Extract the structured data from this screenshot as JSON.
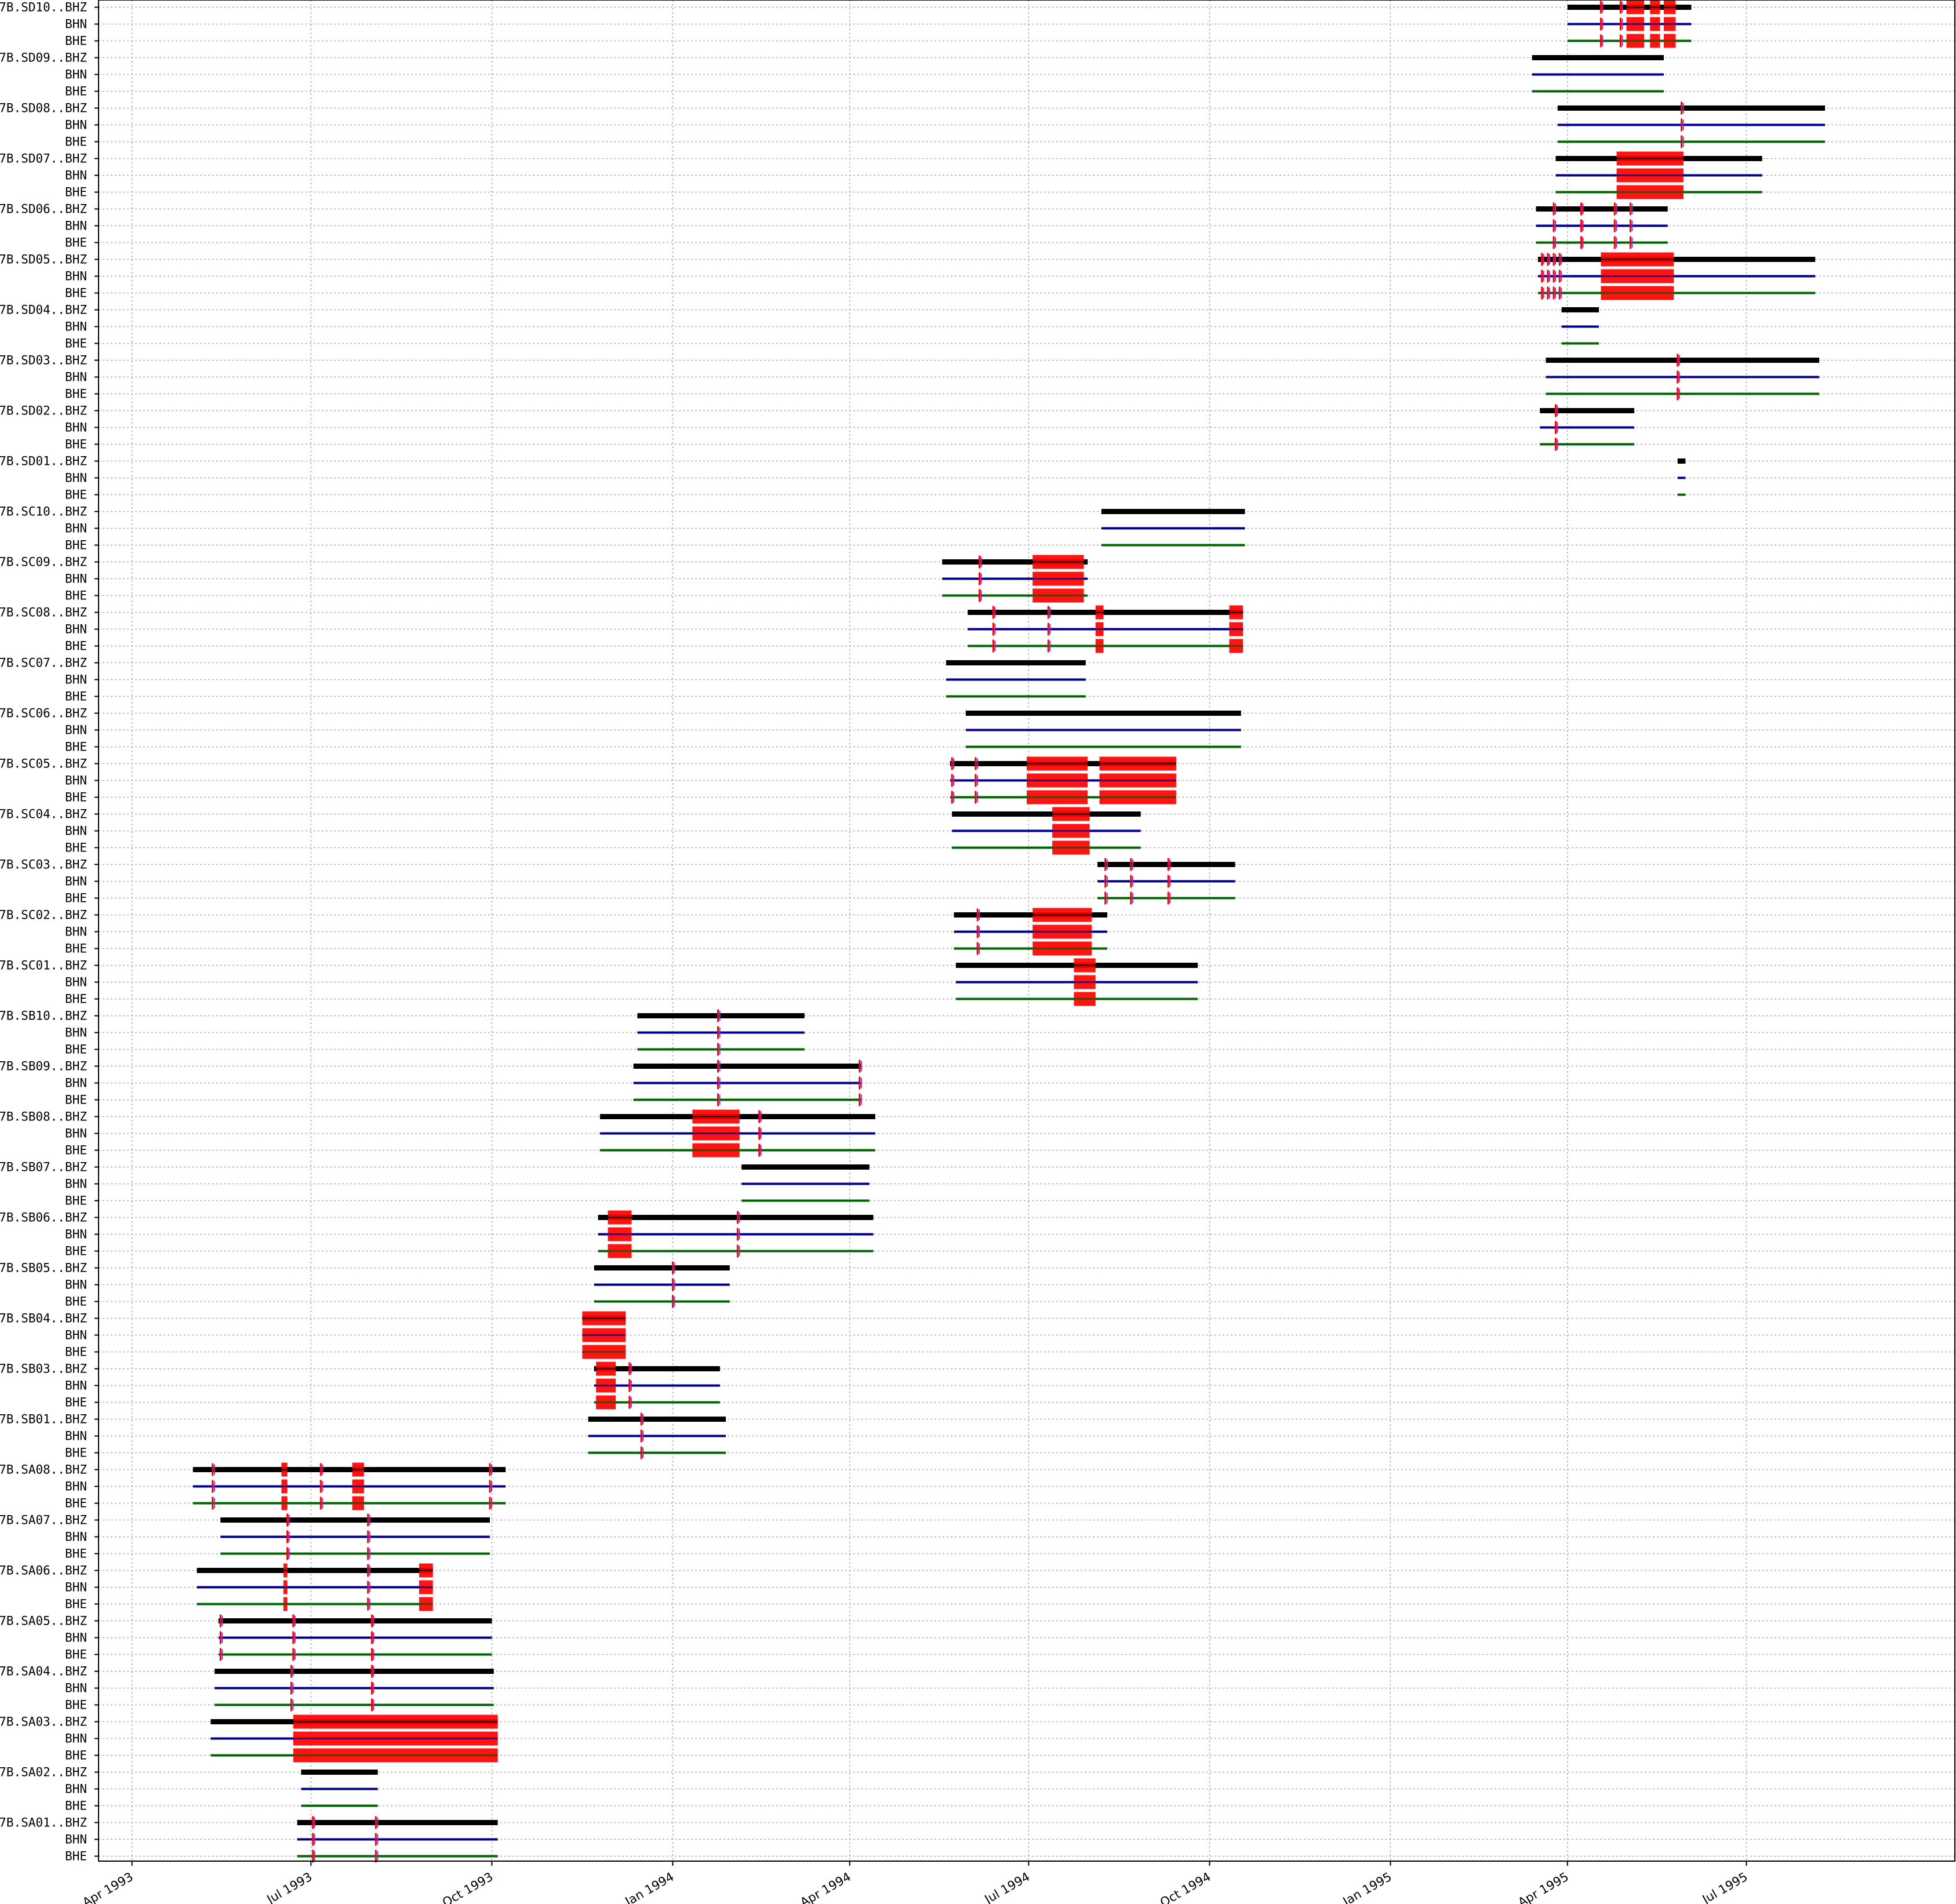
{
  "chart_data": {
    "type": "gantt",
    "title": "",
    "xlabel": "",
    "ylabel": "",
    "grid": true,
    "x_axis": {
      "type": "date",
      "range": [
        "1993-03-15",
        "1995-10-15"
      ],
      "ticks": [
        {
          "date": "1993-04-01",
          "label": "Apr 1993"
        },
        {
          "date": "1993-07-01",
          "label": "Jul 1993"
        },
        {
          "date": "1993-10-01",
          "label": "Oct 1993"
        },
        {
          "date": "1994-01-01",
          "label": "Jan 1994"
        },
        {
          "date": "1994-04-01",
          "label": "Apr 1994"
        },
        {
          "date": "1994-07-01",
          "label": "Jul 1994"
        },
        {
          "date": "1994-10-01",
          "label": "Oct 1994"
        },
        {
          "date": "1995-01-01",
          "label": "Jan 1995"
        },
        {
          "date": "1995-04-01",
          "label": "Apr 1995"
        },
        {
          "date": "1995-07-01",
          "label": "Jul 1995"
        }
      ]
    },
    "channel_colors": {
      "BHZ": "#000000",
      "BHN": "#00008b",
      "BHE": "#006400"
    },
    "gap_color": "#ff0000",
    "overlap_color": "#8a2be2",
    "stations": [
      {
        "id": "7B.SD10",
        "start": "1995-04-01",
        "end": "1995-06-03",
        "gaps": [
          [
            "1995-05-01",
            "1995-05-10"
          ],
          [
            "1995-05-13",
            "1995-05-18"
          ],
          [
            "1995-05-20",
            "1995-05-26"
          ]
        ],
        "ticks": [
          "1995-04-18",
          "1995-04-28"
        ]
      },
      {
        "id": "7B.SD09",
        "start": "1995-03-14",
        "end": "1995-05-20",
        "gaps": [],
        "ticks": []
      },
      {
        "id": "7B.SD08",
        "start": "1995-03-27",
        "end": "1995-08-10",
        "gaps": [],
        "ticks": [
          "1995-05-29"
        ]
      },
      {
        "id": "7B.SD07",
        "start": "1995-03-26",
        "end": "1995-07-09",
        "gaps": [
          [
            "1995-04-26",
            "1995-05-30"
          ]
        ],
        "ticks": []
      },
      {
        "id": "7B.SD06",
        "start": "1995-03-16",
        "end": "1995-05-22",
        "gaps": [],
        "ticks": [
          "1995-03-25",
          "1995-04-08",
          "1995-04-25",
          "1995-05-03"
        ]
      },
      {
        "id": "7B.SD05",
        "start": "1995-03-17",
        "end": "1995-08-05",
        "gaps": [
          [
            "1995-04-18",
            "1995-05-25"
          ]
        ],
        "ticks": [
          "1995-03-19",
          "1995-03-22",
          "1995-03-25",
          "1995-03-28"
        ]
      },
      {
        "id": "7B.SD04",
        "start": "1995-03-29",
        "end": "1995-04-17",
        "gaps": [],
        "ticks": []
      },
      {
        "id": "7B.SD03",
        "start": "1995-03-21",
        "end": "1995-08-07",
        "gaps": [],
        "ticks": [
          "1995-05-27"
        ]
      },
      {
        "id": "7B.SD02",
        "start": "1995-03-18",
        "end": "1995-05-05",
        "gaps": [],
        "ticks": [
          "1995-03-26"
        ]
      },
      {
        "id": "7B.SD01",
        "start": "1995-05-27",
        "end": "1995-05-31",
        "gaps": [],
        "ticks": []
      },
      {
        "id": "7B.SC10",
        "start": "1994-08-07",
        "end": "1994-10-19",
        "gaps": [],
        "ticks": []
      },
      {
        "id": "7B.SC09",
        "start": "1994-05-18",
        "end": "1994-07-31",
        "gaps": [
          [
            "1994-07-03",
            "1994-07-29"
          ]
        ],
        "ticks": [
          "1994-06-06"
        ]
      },
      {
        "id": "7B.SC08",
        "start": "1994-05-31",
        "end": "1994-10-18",
        "gaps": [
          [
            "1994-08-04",
            "1994-08-08"
          ],
          [
            "1994-10-11",
            "1994-10-18"
          ]
        ],
        "ticks": [
          "1994-06-13",
          "1994-07-11"
        ]
      },
      {
        "id": "7B.SC07",
        "start": "1994-05-20",
        "end": "1994-07-30",
        "gaps": [],
        "ticks": []
      },
      {
        "id": "7B.SC06",
        "start": "1994-05-30",
        "end": "1994-10-17",
        "gaps": [],
        "ticks": []
      },
      {
        "id": "7B.SC05",
        "start": "1994-05-22",
        "end": "1994-09-14",
        "gaps": [
          [
            "1994-06-30",
            "1994-07-31"
          ],
          [
            "1994-08-06",
            "1994-09-14"
          ]
        ],
        "ticks": [
          "1994-05-23",
          "1994-06-04"
        ]
      },
      {
        "id": "7B.SC04",
        "start": "1994-05-23",
        "end": "1994-08-27",
        "gaps": [
          [
            "1994-07-13",
            "1994-08-01"
          ]
        ],
        "ticks": []
      },
      {
        "id": "7B.SC03",
        "start": "1994-08-05",
        "end": "1994-10-14",
        "gaps": [],
        "ticks": [
          "1994-08-09",
          "1994-08-22",
          "1994-09-10"
        ]
      },
      {
        "id": "7B.SC02",
        "start": "1994-05-24",
        "end": "1994-08-10",
        "gaps": [
          [
            "1994-07-03",
            "1994-08-02"
          ]
        ],
        "ticks": [
          "1994-06-05"
        ]
      },
      {
        "id": "7B.SC01",
        "start": "1994-05-25",
        "end": "1994-09-25",
        "gaps": [
          [
            "1994-07-24",
            "1994-08-04"
          ]
        ],
        "ticks": []
      },
      {
        "id": "7B.SB10",
        "start": "1993-12-14",
        "end": "1994-03-09",
        "gaps": [],
        "ticks": [
          "1994-01-24"
        ]
      },
      {
        "id": "7B.SB09",
        "start": "1993-12-12",
        "end": "1994-04-07",
        "gaps": [],
        "ticks": [
          "1994-01-24",
          "1994-04-06"
        ]
      },
      {
        "id": "7B.SB08",
        "start": "1993-11-25",
        "end": "1994-04-14",
        "gaps": [
          [
            "1994-01-11",
            "1994-02-04"
          ]
        ],
        "ticks": [
          "1994-02-14"
        ]
      },
      {
        "id": "7B.SB07",
        "start": "1994-02-05",
        "end": "1994-04-11",
        "gaps": [],
        "ticks": []
      },
      {
        "id": "7B.SB06",
        "start": "1993-11-24",
        "end": "1994-04-13",
        "gaps": [
          [
            "1993-11-29",
            "1993-12-11"
          ]
        ],
        "ticks": [
          "1994-02-03"
        ]
      },
      {
        "id": "7B.SB05",
        "start": "1993-11-22",
        "end": "1994-01-30",
        "gaps": [],
        "ticks": [
          "1994-01-01"
        ]
      },
      {
        "id": "7B.SB04",
        "start": "1993-11-16",
        "end": "1993-12-08",
        "gaps": [
          [
            "1993-11-16",
            "1993-12-08"
          ]
        ],
        "ticks": []
      },
      {
        "id": "7B.SB03",
        "start": "1993-11-22",
        "end": "1994-01-25",
        "gaps": [
          [
            "1993-11-23",
            "1993-12-03"
          ]
        ],
        "ticks": [
          "1993-12-10"
        ]
      },
      {
        "id": "7B.SB01",
        "start": "1993-11-19",
        "end": "1994-01-28",
        "gaps": [],
        "ticks": [
          "1993-12-16"
        ]
      },
      {
        "id": "7B.SA08",
        "start": "1993-05-02",
        "end": "1993-10-08",
        "gaps": [
          [
            "1993-06-16",
            "1993-06-19"
          ],
          [
            "1993-07-22",
            "1993-07-28"
          ]
        ],
        "ticks": [
          "1993-05-12",
          "1993-07-06",
          "1993-09-30"
        ]
      },
      {
        "id": "7B.SA07",
        "start": "1993-05-16",
        "end": "1993-09-30",
        "gaps": [],
        "ticks": [
          "1993-06-19",
          "1993-07-30"
        ]
      },
      {
        "id": "7B.SA06",
        "start": "1993-05-04",
        "end": "1993-09-01",
        "gaps": [
          [
            "1993-06-17",
            "1993-06-19"
          ],
          [
            "1993-08-25",
            "1993-09-01"
          ]
        ],
        "ticks": [
          "1993-07-30"
        ]
      },
      {
        "id": "7B.SA05",
        "start": "1993-05-15",
        "end": "1993-10-01",
        "gaps": [],
        "ticks": [
          "1993-05-16",
          "1993-06-22",
          "1993-08-01"
        ]
      },
      {
        "id": "7B.SA04",
        "start": "1993-05-13",
        "end": "1993-10-02",
        "gaps": [],
        "ticks": [
          "1993-06-21",
          "1993-08-01"
        ]
      },
      {
        "id": "7B.SA03",
        "start": "1993-05-11",
        "end": "1993-10-04",
        "gaps": [
          [
            "1993-06-22",
            "1993-10-04"
          ]
        ],
        "ticks": []
      },
      {
        "id": "7B.SA02",
        "start": "1993-06-26",
        "end": "1993-08-04",
        "gaps": [],
        "ticks": []
      },
      {
        "id": "7B.SA01",
        "start": "1993-06-24",
        "end": "1993-10-04",
        "gaps": [],
        "ticks": [
          "1993-07-02",
          "1993-08-03"
        ]
      }
    ]
  }
}
